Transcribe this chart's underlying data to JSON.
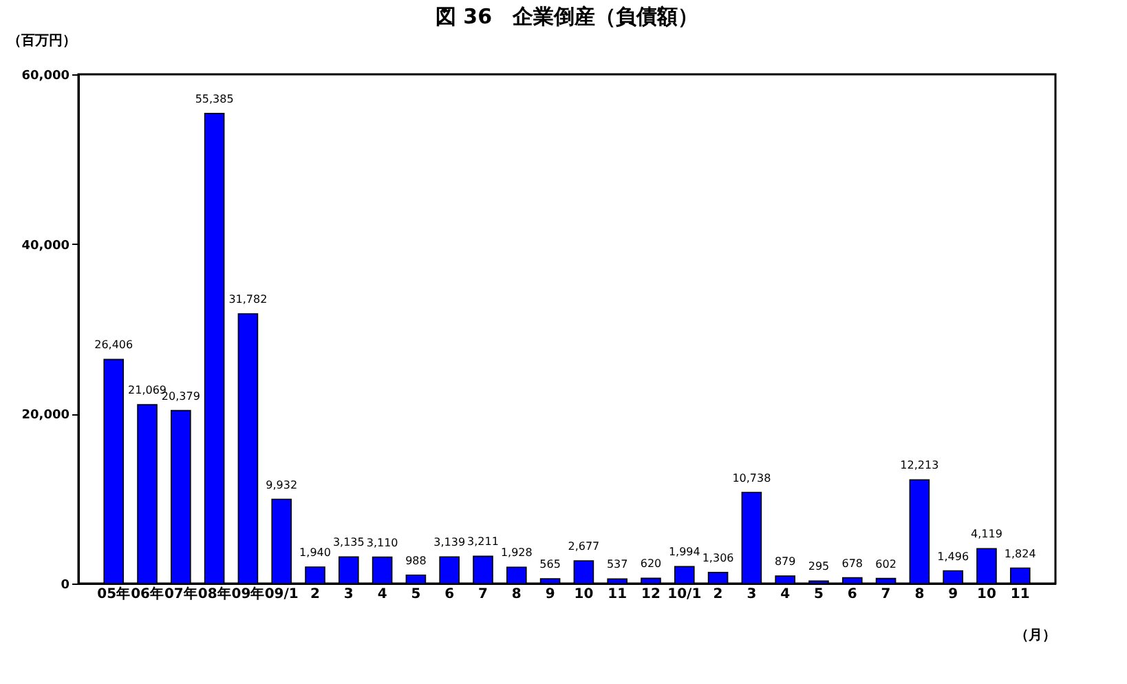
{
  "chart_data": {
    "type": "bar",
    "title": "図 36　企業倒産（負債額）",
    "ylabel": "（百万円）",
    "xlabel": "（月）",
    "categories": [
      "05年",
      "06年",
      "07年",
      "08年",
      "09年",
      "09/1",
      "2",
      "3",
      "4",
      "5",
      "6",
      "7",
      "8",
      "9",
      "10",
      "11",
      "12",
      "10/1",
      "2",
      "3",
      "4",
      "5",
      "6",
      "7",
      "8",
      "9",
      "10",
      "11"
    ],
    "values": [
      26406,
      21069,
      20379,
      55385,
      31782,
      9932,
      1940,
      3135,
      3110,
      988,
      3139,
      3211,
      1928,
      565,
      2677,
      537,
      620,
      1994,
      1306,
      10738,
      879,
      295,
      678,
      602,
      12213,
      1496,
      4119,
      1824
    ],
    "value_labels": [
      "26,406",
      "21,069",
      "20,379",
      "55,385",
      "31,782",
      "9,932",
      "1,940",
      "3,135",
      "3,110",
      "988",
      "3,139",
      "3,211",
      "1,928",
      "565",
      "2,677",
      "537",
      "620",
      "1,994",
      "1,306",
      "10,738",
      "879",
      "295",
      "678",
      "602",
      "12,213",
      "1,496",
      "4,119",
      "1,824"
    ],
    "color": "#0000ff",
    "ylim": [
      0,
      60000
    ],
    "yticks": [
      0,
      {
        "value": 20000,
        "label": "20,000"
      },
      {
        "value": 40000,
        "label": "40,000"
      },
      {
        "value": 60000,
        "label": "60,000"
      }
    ],
    "grid": false
  }
}
